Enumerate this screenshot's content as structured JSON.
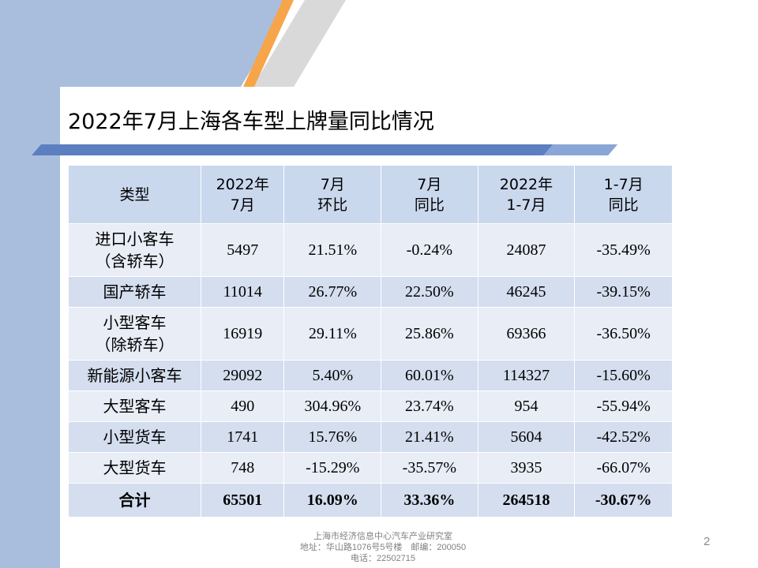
{
  "slide": {
    "title": "2022年7月上海各车型上牌量同比情况",
    "page_number": "2",
    "footer": {
      "line1": "上海市经济信息中心汽车产业研究室",
      "line2": "地址：华山路1076号5号楼　邮编：200050",
      "line3": "电话：22502715"
    }
  },
  "colors": {
    "left_band": "#a9bedd",
    "header_bg": "#cad8ee",
    "row_light": "#e8edf6",
    "row_dark": "#d4deef",
    "accent_orange": "#f7a54a",
    "accent_blue": "#5b7fc0"
  },
  "table": {
    "headers": [
      [
        "类型"
      ],
      [
        "2022年",
        "7月"
      ],
      [
        "7月",
        "环比"
      ],
      [
        "7月",
        "同比"
      ],
      [
        "2022年",
        "1-7月"
      ],
      [
        "1-7月",
        "同比"
      ]
    ],
    "rows": [
      {
        "type": [
          "进口小客车",
          "（含轿车）"
        ],
        "m7": "5497",
        "mom": "21.51%",
        "yoy": "-0.24%",
        "ytd": "24087",
        "ytd_yoy": "-35.49%"
      },
      {
        "type": [
          "国产轿车"
        ],
        "m7": "11014",
        "mom": "26.77%",
        "yoy": "22.50%",
        "ytd": "46245",
        "ytd_yoy": "-39.15%"
      },
      {
        "type": [
          "小型客车",
          "（除轿车）"
        ],
        "m7": "16919",
        "mom": "29.11%",
        "yoy": "25.86%",
        "ytd": "69366",
        "ytd_yoy": "-36.50%"
      },
      {
        "type": [
          "新能源小客车"
        ],
        "m7": "29092",
        "mom": "5.40%",
        "yoy": "60.01%",
        "ytd": "114327",
        "ytd_yoy": "-15.60%"
      },
      {
        "type": [
          "大型客车"
        ],
        "m7": "490",
        "mom": "304.96%",
        "yoy": "23.74%",
        "ytd": "954",
        "ytd_yoy": "-55.94%"
      },
      {
        "type": [
          "小型货车"
        ],
        "m7": "1741",
        "mom": "15.76%",
        "yoy": "21.41%",
        "ytd": "5604",
        "ytd_yoy": "-42.52%"
      },
      {
        "type": [
          "大型货车"
        ],
        "m7": "748",
        "mom": "-15.29%",
        "yoy": "-35.57%",
        "ytd": "3935",
        "ytd_yoy": "-66.07%"
      }
    ],
    "total": {
      "type": "合计",
      "m7": "65501",
      "mom": "16.09%",
      "yoy": "33.36%",
      "ytd": "264518",
      "ytd_yoy": "-30.67%"
    }
  }
}
